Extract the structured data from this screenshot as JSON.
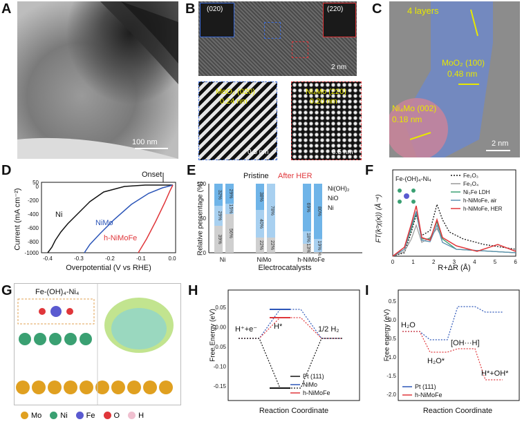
{
  "panels": {
    "A": "A",
    "B": "B",
    "C": "C",
    "D": "D",
    "E": "E",
    "F": "F",
    "G": "G",
    "H": "H",
    "I": "I"
  },
  "colors": {
    "black": "#111111",
    "blue": "#2b55b8",
    "red": "#e0363a",
    "lightblue": "#a8d0f0",
    "gray": "#cfcfcf",
    "green": "#3aa072",
    "teal": "#5a8fb0"
  },
  "imgA": {
    "scalebar": "100 nm"
  },
  "imgB": {
    "fft_left": "(020)",
    "fft_right": "(220)",
    "scalebar": "2 nm",
    "inset_left_label1": "MoO₂ (020)",
    "inset_left_label2": "0.24 nm",
    "inset_left_scale": "0.5 nm",
    "inset_right_label1": "Ni₄Mo (220)",
    "inset_right_label2": "0.20 nm",
    "inset_right_scale": "0.5 nm"
  },
  "imgC": {
    "layers": "4 layers",
    "moo2": "MoO₂ (100)",
    "moo2_d": "0.48 nm",
    "ni4mo": "Ni₄Mo (002)",
    "ni4mo_d": "0.18 nm",
    "scalebar": "2 nm"
  },
  "panelD": {
    "ylabel": "Current (mA cm⁻²)",
    "xlabel": "Overpotential (V vs RHE)",
    "onset": "Onset",
    "xticks": [
      "-0.4",
      "-0.3",
      "-0.2",
      "-0.1",
      "0.0"
    ],
    "yticks": [
      "50",
      "0",
      "-200",
      "-400",
      "-600",
      "-800",
      "-1000"
    ],
    "series": [
      "Ni",
      "NiMo",
      "h-NiMoFe"
    ]
  },
  "panelE": {
    "ylabel": "Relative percentage (%)",
    "xlabel": "Electrocatalysts",
    "pristine": "Pristine",
    "after": "After HER",
    "legend": [
      "Ni(OH)₂",
      "NiO",
      "Ni"
    ],
    "yticks": [
      "0",
      "50",
      "100"
    ],
    "groups": [
      "Ni",
      "NiMo",
      "h-NiMoFe"
    ],
    "bars": [
      {
        "group": "Ni",
        "state": "Pristine",
        "ni": 39,
        "nio": 29,
        "nioh2": 32
      },
      {
        "group": "Ni",
        "state": "After HER",
        "ni": 56,
        "nio": 15,
        "nioh2": 29
      },
      {
        "group": "NiMo",
        "state": "Pristine",
        "ni": 22,
        "nio": 40,
        "nioh2": 38
      },
      {
        "group": "NiMo",
        "state": "After HER",
        "ni": 22,
        "nio": 78,
        "nioh2": 0
      },
      {
        "group": "h-NiMoFe",
        "state": "Pristine",
        "ni": 13,
        "nio": 18,
        "nioh2": 69
      },
      {
        "group": "h-NiMoFe",
        "state": "After HER",
        "ni": 1,
        "nio": 19,
        "nioh2": 80
      }
    ]
  },
  "panelF": {
    "ylabel": "FT(k³χ(κ)) (Å⁻⁴)",
    "xlabel": "R+ΔR (Å)",
    "xticks": [
      "0",
      "1",
      "2",
      "3",
      "4",
      "5",
      "6"
    ],
    "inset": "Fe-(OH)₄-Ni₄",
    "legend": [
      "Fe₂O₃",
      "Fe₃O₄",
      "Ni₃Fe LDH",
      "h-NiMoFe, air",
      "h-NiMoFe, HER"
    ]
  },
  "panelG": {
    "label": "Fe-(OH)₄-Ni₄",
    "legend": [
      "Mo",
      "Ni",
      "Fe",
      "O",
      "H"
    ]
  },
  "panelH": {
    "ylabel": "Free Energy (eV)",
    "xlabel": "Reaction Coordinate",
    "state1": "H⁺+e⁻",
    "state2": "H*",
    "state3": "1/2 H₂",
    "yticks": [
      "0.05",
      "0.00",
      "-0.05",
      "-0.10",
      "-0.15"
    ],
    "legend": [
      "Pt (111)",
      "NiMo",
      "h-NiMoFe"
    ]
  },
  "panelI": {
    "ylabel": "Free energy (eV)",
    "xlabel": "Reaction Coordinate",
    "s1": "H₂O",
    "s2": "H₂O*",
    "s3": "[OH···H]",
    "s4": "H*+OH*",
    "yticks": [
      "0.5",
      "0.0",
      "-0.5",
      "-1.0",
      "-1.5",
      "-2.0"
    ],
    "legend": [
      "Pt (111)",
      "h-NiMoFe"
    ]
  }
}
